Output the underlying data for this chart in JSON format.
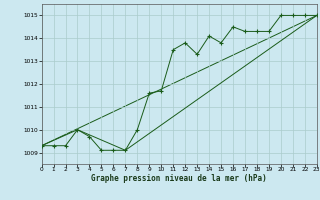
{
  "title": "Graphe pression niveau de la mer (hPa)",
  "bg_color": "#cce8f0",
  "grid_color": "#aacccc",
  "line_color": "#1a5c1a",
  "x_min": 0,
  "x_max": 23,
  "y_min": 1008.5,
  "y_max": 1015.5,
  "x_ticks": [
    0,
    1,
    2,
    3,
    4,
    5,
    6,
    7,
    8,
    9,
    10,
    11,
    12,
    13,
    14,
    15,
    16,
    17,
    18,
    19,
    20,
    21,
    22,
    23
  ],
  "y_ticks": [
    1009,
    1010,
    1011,
    1012,
    1013,
    1014,
    1015
  ],
  "series1_x": [
    0,
    1,
    2,
    3,
    4,
    5,
    6,
    7,
    8,
    9,
    10,
    11,
    12,
    13,
    14,
    15,
    16,
    17,
    18,
    19,
    20,
    21,
    22,
    23
  ],
  "series1_y": [
    1009.3,
    1009.3,
    1009.3,
    1010.0,
    1009.7,
    1009.1,
    1009.1,
    1009.1,
    1010.0,
    1011.6,
    1011.7,
    1013.5,
    1013.8,
    1013.3,
    1014.1,
    1013.8,
    1014.5,
    1014.3,
    1014.3,
    1014.3,
    1015.0,
    1015.0,
    1015.0,
    1015.0
  ],
  "series2_x": [
    0,
    3,
    7,
    23
  ],
  "series2_y": [
    1009.3,
    1010.0,
    1009.1,
    1015.0
  ],
  "series3_x": [
    0,
    23
  ],
  "series3_y": [
    1009.3,
    1015.0
  ]
}
